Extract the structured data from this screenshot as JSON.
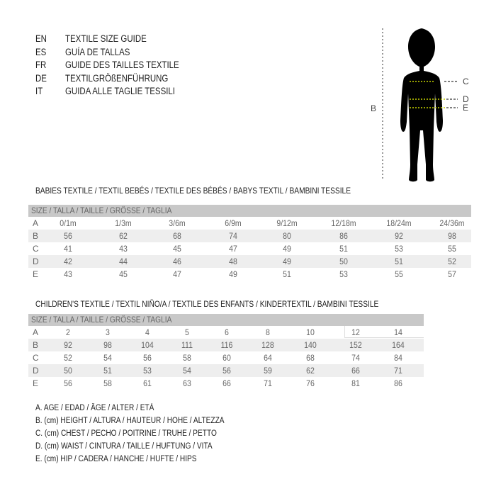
{
  "languages": [
    {
      "code": "EN",
      "text": "TEXTILE SIZE GUIDE"
    },
    {
      "code": "ES",
      "text": "GUÍA DE TALLAS"
    },
    {
      "code": "FR",
      "text": "GUIDE DES TAILLES TEXTILE"
    },
    {
      "code": "DE",
      "text": "TEXTILGRÖßENFÜHRUNG"
    },
    {
      "code": "IT",
      "text": "GUIDA ALLE TAGLIE TESSILI"
    }
  ],
  "figure": {
    "labels": {
      "b": "B",
      "c": "C",
      "d": "D",
      "e": "E"
    },
    "silhouette_color": "#000000",
    "guide_color": "#c8d400",
    "icon": "child-silhouette"
  },
  "babies": {
    "title": "BABIES TEXTILE / TEXTIL BEBÉS / TEXTILE DES BÉBÉS / BABYS TEXTIL  / BAMBINI TESSILE",
    "header": "SIZE / TALLA / TAILLE / GRÖSSE / TAGLIA",
    "rows": [
      {
        "label": "A",
        "values": [
          "0/1m",
          "1/3m",
          "3/6m",
          "6/9m",
          "9/12m",
          "12/18m",
          "18/24m",
          "24/36m"
        ]
      },
      {
        "label": "B",
        "values": [
          "56",
          "62",
          "68",
          "74",
          "80",
          "86",
          "92",
          "98"
        ]
      },
      {
        "label": "C",
        "values": [
          "41",
          "43",
          "45",
          "47",
          "49",
          "51",
          "53",
          "55"
        ]
      },
      {
        "label": "D",
        "values": [
          "42",
          "44",
          "46",
          "48",
          "49",
          "50",
          "51",
          "52"
        ]
      },
      {
        "label": "E",
        "values": [
          "43",
          "45",
          "47",
          "49",
          "51",
          "53",
          "55",
          "57"
        ]
      }
    ]
  },
  "children": {
    "title": "CHILDREN'S TEXTILE / TEXTIL NIÑO/A / TEXTILE DES ENFANTS / KINDERTEXTIL / BAMBINI TESSILE",
    "header": "SIZE / TALLA / TAILLE / GRÖSSE / TAGLIA",
    "rows": [
      {
        "label": "A",
        "values": [
          "2",
          "3",
          "4",
          "5",
          "6",
          "8",
          "10",
          "12",
          "14"
        ]
      },
      {
        "label": "B",
        "values": [
          "92",
          "98",
          "104",
          "111",
          "116",
          "128",
          "140",
          "152",
          "164"
        ]
      },
      {
        "label": "C",
        "values": [
          "52",
          "54",
          "56",
          "58",
          "60",
          "64",
          "68",
          "74",
          "84"
        ]
      },
      {
        "label": "D",
        "values": [
          "50",
          "51",
          "53",
          "54",
          "56",
          "59",
          "62",
          "66",
          "71"
        ]
      },
      {
        "label": "E",
        "values": [
          "56",
          "58",
          "61",
          "63",
          "66",
          "71",
          "76",
          "81",
          "86"
        ]
      }
    ]
  },
  "legend": [
    "A. AGE / EDAD / ÂGE / ALTER / ETÀ",
    "B. (cm) HEIGHT / ALTURA / HAUTEUR / HÖHE / ALTEZZA",
    "C. (cm) CHEST / PECHO / POITRINE / TRUHE / PETTO",
    "D. (cm) WAIST / CINTURA / TAILLE / HÜFTUNG / VITA",
    "E. (cm) HIP / CADERA / HANCHE / HÜFTE / HIPS"
  ]
}
